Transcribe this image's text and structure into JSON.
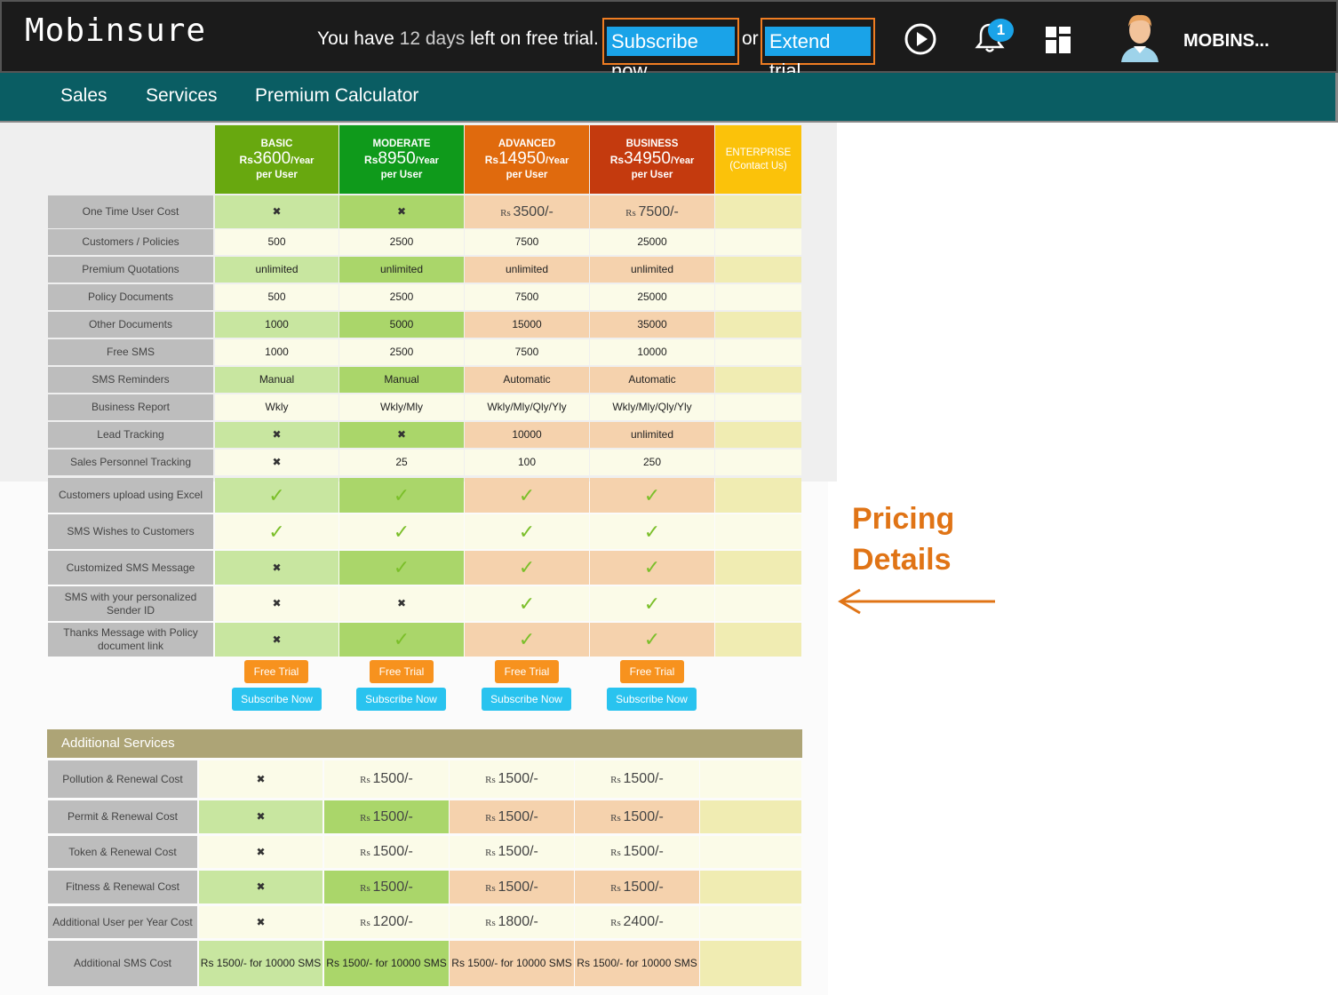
{
  "header": {
    "app_name": "Mobinsure",
    "trial_prefix": "You have",
    "trial_days": "12 days",
    "trial_suffix": "left on free trial.",
    "subscribe_label": "Subscribe now",
    "or_label": "or",
    "extend_label": "Extend trial",
    "notification_count": "1",
    "user_name": "MOBINS...",
    "icons": [
      "play-circle-icon",
      "bell-icon",
      "dashboard-grid-icon",
      "user-avatar-icon"
    ]
  },
  "nav": {
    "items": [
      "Sales",
      "Services",
      "Premium Calculator"
    ]
  },
  "plans": [
    {
      "name": "BASIC",
      "currency": "Rs",
      "price": "3600",
      "period": "/Year",
      "per": "per User",
      "color": "#68a80f"
    },
    {
      "name": "MODERATE",
      "currency": "Rs",
      "price": "8950",
      "period": "/Year",
      "per": "per User",
      "color": "#0f9a1b"
    },
    {
      "name": "ADVANCED",
      "currency": "Rs",
      "price": "14950",
      "period": "/Year",
      "per": "per User",
      "color": "#e06a0d"
    },
    {
      "name": "BUSINESS",
      "currency": "Rs",
      "price": "34950",
      "period": "/Year",
      "per": "per User",
      "color": "#c43a0e"
    },
    {
      "name": "ENTERPRISE",
      "contact": "(Contact Us)",
      "color": "#fbc20a"
    }
  ],
  "features": [
    {
      "label": "One Time User Cost",
      "values": [
        "x",
        "x",
        "Rs|3500/-",
        "Rs|7500/-"
      ]
    },
    {
      "label": "Customers / Policies",
      "values": [
        "500",
        "2500",
        "7500",
        "25000"
      ]
    },
    {
      "label": "Premium Quotations",
      "values": [
        "unlimited",
        "unlimited",
        "unlimited",
        "unlimited"
      ]
    },
    {
      "label": "Policy Documents",
      "values": [
        "500",
        "2500",
        "7500",
        "25000"
      ]
    },
    {
      "label": "Other Documents",
      "values": [
        "1000",
        "5000",
        "15000",
        "35000"
      ]
    },
    {
      "label": "Free SMS",
      "values": [
        "1000",
        "2500",
        "7500",
        "10000"
      ]
    },
    {
      "label": "SMS Reminders",
      "values": [
        "Manual",
        "Manual",
        "Automatic",
        "Automatic"
      ]
    },
    {
      "label": "Business Report",
      "values": [
        "Wkly",
        "Wkly/Mly",
        "Wkly/Mly/Qly/Yly",
        "Wkly/Mly/Qly/Yly"
      ]
    },
    {
      "label": "Lead Tracking",
      "values": [
        "x",
        "x",
        "10000",
        "unlimited"
      ]
    },
    {
      "label": "Sales Personnel Tracking",
      "values": [
        "x",
        "25",
        "100",
        "250"
      ]
    },
    {
      "label": "Customers upload using Excel",
      "values": [
        "check",
        "check",
        "check",
        "check"
      ]
    },
    {
      "label": "SMS Wishes to Customers",
      "values": [
        "check",
        "check",
        "check",
        "check"
      ]
    },
    {
      "label": "Customized SMS Message",
      "values": [
        "x",
        "check",
        "check",
        "check"
      ]
    },
    {
      "label": "SMS with your personalized Sender ID",
      "values": [
        "x",
        "x",
        "check",
        "check"
      ]
    },
    {
      "label": "Thanks Message with Policy document link",
      "values": [
        "x",
        "check",
        "check",
        "check"
      ]
    }
  ],
  "actions": {
    "free_trial": "Free Trial",
    "subscribe": "Subscribe Now"
  },
  "additional": {
    "title": "Additional Services",
    "rows": [
      {
        "label": "Pollution & Renewal Cost",
        "values": [
          "x",
          "Rs|1500/-",
          "Rs|1500/-",
          "Rs|1500/-"
        ]
      },
      {
        "label": "Permit & Renewal Cost",
        "values": [
          "x",
          "Rs|1500/-",
          "Rs|1500/-",
          "Rs|1500/-"
        ]
      },
      {
        "label": "Token & Renewal Cost",
        "values": [
          "x",
          "Rs|1500/-",
          "Rs|1500/-",
          "Rs|1500/-"
        ]
      },
      {
        "label": "Fitness & Renewal Cost",
        "values": [
          "x",
          "Rs|1500/-",
          "Rs|1500/-",
          "Rs|1500/-"
        ]
      },
      {
        "label": "Additional User per Year Cost",
        "values": [
          "x",
          "Rs|1200/-",
          "Rs|1800/-",
          "Rs|2400/-"
        ]
      },
      {
        "label": "Additional SMS Cost",
        "values": [
          "Rs 1500/- for 10000 SMS",
          "Rs 1500/- for 10000 SMS",
          "Rs 1500/- for 10000 SMS",
          "Rs 1500/- for 10000 SMS"
        ]
      }
    ]
  },
  "annotation": {
    "text_line1": "Pricing",
    "text_line2": "Details"
  },
  "colors": {
    "topbar": "#1b1b1b",
    "nav": "#0a5d63",
    "highlight_border": "#ef7d22",
    "button_blue": "#1aa3e8"
  }
}
